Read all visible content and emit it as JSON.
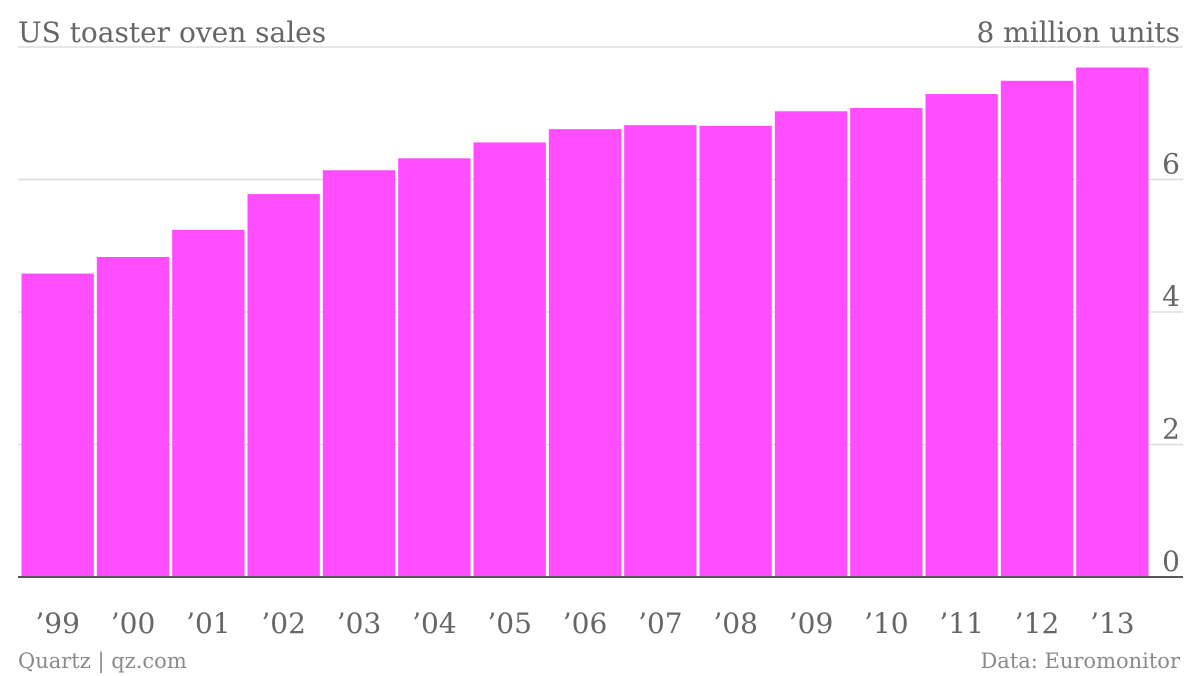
{
  "chart_data": {
    "type": "bar",
    "title": "US toaster oven sales",
    "unit_label": "8 million units",
    "categories": [
      "’99",
      "’00",
      "’01",
      "’02",
      "’03",
      "’04",
      "’05",
      "’06",
      "’07",
      "’08",
      "’09",
      "’10",
      "’11",
      "’12",
      "’13"
    ],
    "values": [
      4.58,
      4.83,
      5.24,
      5.78,
      6.14,
      6.32,
      6.56,
      6.76,
      6.82,
      6.81,
      7.03,
      7.08,
      7.29,
      7.49,
      7.69
    ],
    "ylim": [
      0,
      8
    ],
    "yticks": [
      {
        "value": 0,
        "label": "0"
      },
      {
        "value": 2,
        "label": "2"
      },
      {
        "value": 4,
        "label": "4"
      },
      {
        "value": 6,
        "label": "6"
      },
      {
        "value": 8,
        "label": "8"
      }
    ],
    "axis_position": "right",
    "grid": true,
    "bar_color": "#ff4dff"
  },
  "footer": {
    "left": "Quartz | qz.com",
    "right": "Data: Euromonitor"
  },
  "colors": {
    "text": "#666666",
    "grid": "#dddddd",
    "baseline": "#555555",
    "footer": "#8a8a8a"
  }
}
